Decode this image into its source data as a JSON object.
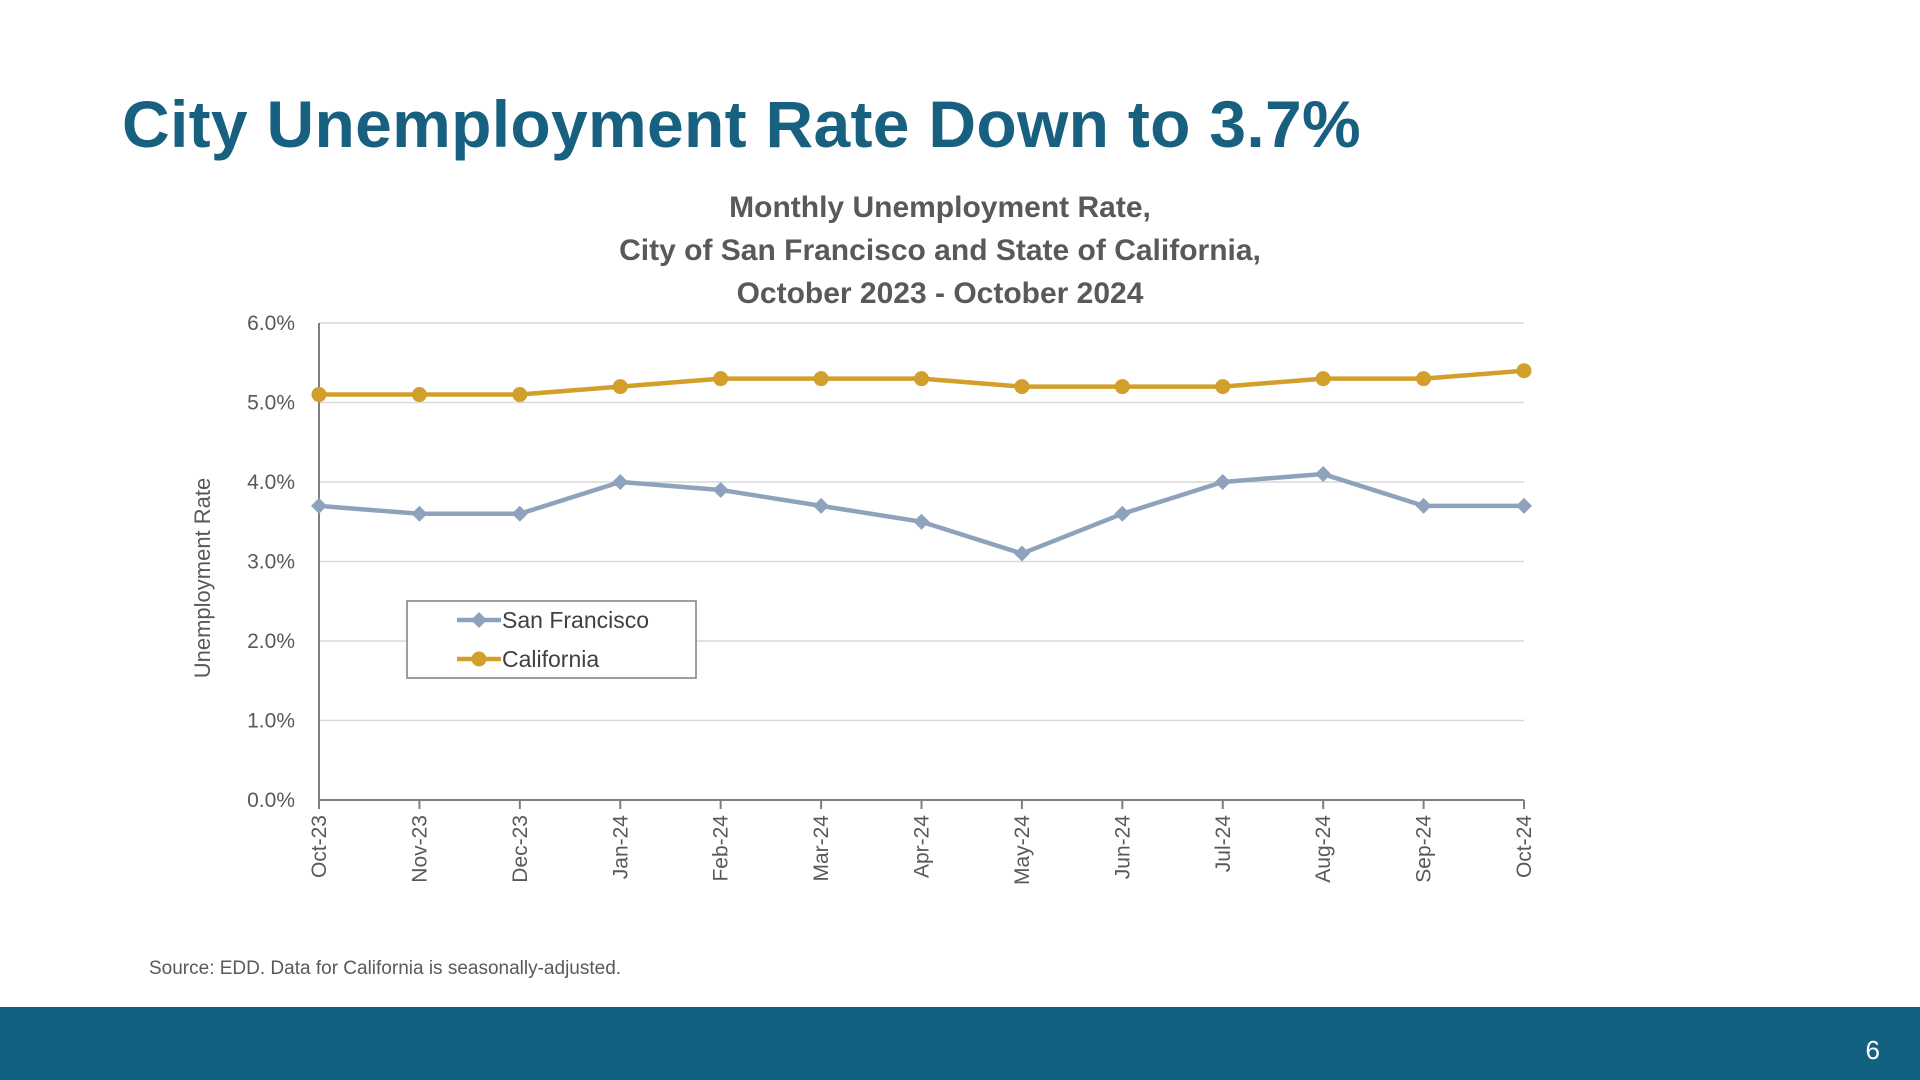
{
  "slide": {
    "title": "City Unemployment Rate Down to 3.7%",
    "source": "Source: EDD. Data for California is seasonally-adjusted.",
    "page_number": "6"
  },
  "colors": {
    "title": "#17607f",
    "footer": "#136180",
    "san_francisco": "#8ea2bd",
    "california": "#d2a02a"
  },
  "chart_data": {
    "type": "line",
    "title_lines": [
      "Monthly Unemployment Rate,",
      "City of San Francisco and State of California,",
      "October 2023 - October 2024"
    ],
    "xlabel": "",
    "ylabel": "Unemployment Rate",
    "ylim": [
      0,
      6
    ],
    "yticks": [
      "0.0%",
      "1.0%",
      "2.0%",
      "3.0%",
      "4.0%",
      "5.0%",
      "6.0%"
    ],
    "grid": true,
    "legend_position": "lower-left",
    "categories": [
      "Oct-23",
      "Nov-23",
      "Dec-23",
      "Jan-24",
      "Feb-24",
      "Mar-24",
      "Apr-24",
      "May-24",
      "Jun-24",
      "Jul-24",
      "Aug-24",
      "Sep-24",
      "Oct-24"
    ],
    "series": [
      {
        "name": "San Francisco",
        "marker": "diamond",
        "color": "#8ea2bd",
        "values": [
          3.7,
          3.6,
          3.6,
          4.0,
          3.9,
          3.7,
          3.5,
          3.1,
          3.6,
          4.0,
          4.1,
          3.7,
          3.7
        ]
      },
      {
        "name": "California",
        "marker": "circle",
        "color": "#d2a02a",
        "values": [
          5.1,
          5.1,
          5.1,
          5.2,
          5.3,
          5.3,
          5.3,
          5.2,
          5.2,
          5.2,
          5.3,
          5.3,
          5.4
        ]
      }
    ]
  }
}
